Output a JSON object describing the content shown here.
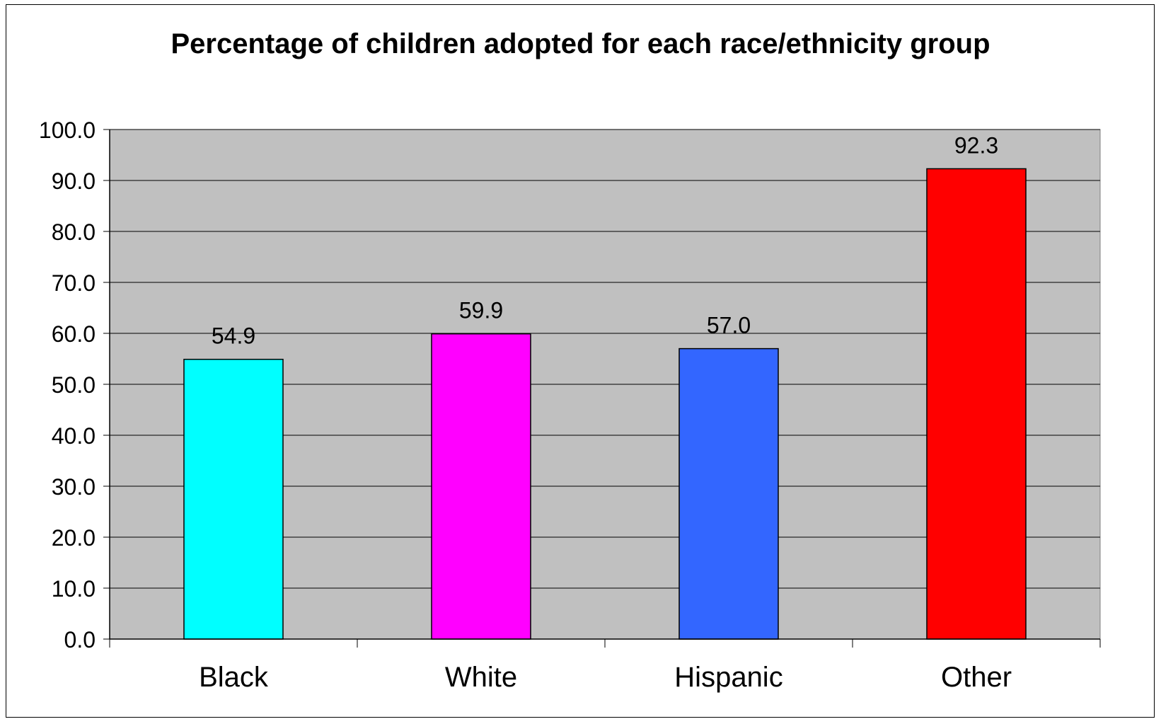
{
  "chart_data": {
    "type": "bar",
    "title": "Percentage of children adopted for each race/ethnicity group",
    "xlabel": "",
    "ylabel": "",
    "categories": [
      "Black",
      "White",
      "Hispanic",
      "Other"
    ],
    "values": [
      54.9,
      59.9,
      57.0,
      92.3
    ],
    "value_labels": [
      "54.9",
      "59.9",
      "57.0",
      "92.3"
    ],
    "ylim": [
      0,
      100
    ],
    "y_ticks": [
      "0.0",
      "10.0",
      "20.0",
      "30.0",
      "40.0",
      "50.0",
      "60.0",
      "70.0",
      "80.0",
      "90.0",
      "100.0"
    ],
    "grid": true,
    "legend": "none",
    "colors": [
      "#00FFFF",
      "#FF00FF",
      "#3366FF",
      "#FF0000"
    ],
    "plot_background": "#C0C0C0"
  }
}
